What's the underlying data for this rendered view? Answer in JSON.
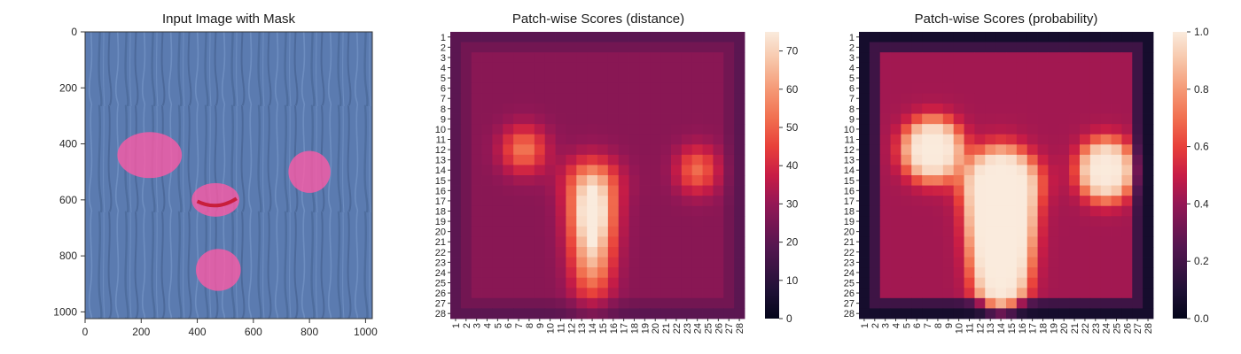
{
  "colors": {
    "texture_base": "#5b7bb0",
    "texture_dark": "#3f5a88",
    "texture_light": "#7f9fd0",
    "mask_pink": "#ff5aa5",
    "defect_red": "#c81e3c"
  },
  "chart_data": [
    {
      "type": "image",
      "title": "Input Image with Mask",
      "xlabel": "",
      "ylabel": "",
      "xlim": [
        0,
        1024
      ],
      "ylim": [
        1024,
        0
      ],
      "x_ticks": [
        "0",
        "200",
        "400",
        "600",
        "800",
        "1000"
      ],
      "y_ticks": [
        "0",
        "200",
        "400",
        "600",
        "800",
        "1000"
      ],
      "mask_regions": [
        {
          "cx": 230,
          "cy": 440,
          "rx": 115,
          "ry": 82
        },
        {
          "cx": 465,
          "cy": 600,
          "rx": 85,
          "ry": 60
        },
        {
          "cx": 800,
          "cy": 500,
          "rx": 75,
          "ry": 75
        },
        {
          "cx": 475,
          "cy": 850,
          "rx": 80,
          "ry": 75
        }
      ]
    },
    {
      "type": "heatmap",
      "title": "Patch-wise Scores (distance)",
      "xlabel": "",
      "ylabel": "",
      "rows": 28,
      "cols": 28,
      "x_ticks": [
        "1",
        "2",
        "3",
        "4",
        "5",
        "6",
        "7",
        "8",
        "9",
        "10",
        "11",
        "12",
        "13",
        "14",
        "15",
        "16",
        "17",
        "18",
        "19",
        "20",
        "21",
        "22",
        "23",
        "24",
        "25",
        "26",
        "27",
        "28"
      ],
      "y_ticks": [
        "1",
        "2",
        "3",
        "4",
        "5",
        "6",
        "7",
        "8",
        "9",
        "10",
        "11",
        "12",
        "13",
        "14",
        "15",
        "16",
        "17",
        "18",
        "19",
        "20",
        "21",
        "22",
        "23",
        "24",
        "25",
        "26",
        "27",
        "28"
      ],
      "colorbar": {
        "range": [
          0,
          75
        ],
        "ticks": [
          "0",
          "10",
          "20",
          "30",
          "40",
          "50",
          "60",
          "70"
        ],
        "tick_values": [
          0,
          10,
          20,
          30,
          40,
          50,
          60,
          70
        ]
      },
      "colormap": "rocket",
      "baseline": 28,
      "hotspots": [
        {
          "row": 18,
          "col": 14,
          "peak": 75,
          "sigma_r": 2.6,
          "sigma_c": 1.5
        },
        {
          "row": 23,
          "col": 14,
          "peak": 58,
          "sigma_r": 2.8,
          "sigma_c": 1.4
        },
        {
          "row": 12,
          "col": 7.5,
          "peak": 54,
          "sigma_r": 1.6,
          "sigma_c": 1.5
        },
        {
          "row": 14,
          "col": 24,
          "peak": 52,
          "sigma_r": 1.6,
          "sigma_c": 1.4
        },
        {
          "row": 15,
          "col": 14,
          "peak": 44,
          "sigma_r": 1.6,
          "sigma_c": 2.0
        }
      ]
    },
    {
      "type": "heatmap",
      "title": "Patch-wise Scores (probability)",
      "xlabel": "",
      "ylabel": "",
      "rows": 28,
      "cols": 28,
      "x_ticks": [
        "1",
        "2",
        "3",
        "4",
        "5",
        "6",
        "7",
        "8",
        "9",
        "10",
        "11",
        "12",
        "13",
        "14",
        "15",
        "16",
        "17",
        "18",
        "19",
        "20",
        "21",
        "22",
        "23",
        "24",
        "25",
        "26",
        "27",
        "28"
      ],
      "y_ticks": [
        "1",
        "2",
        "3",
        "4",
        "5",
        "6",
        "7",
        "8",
        "9",
        "10",
        "11",
        "12",
        "13",
        "14",
        "15",
        "16",
        "17",
        "18",
        "19",
        "20",
        "21",
        "22",
        "23",
        "24",
        "25",
        "26",
        "27",
        "28"
      ],
      "colorbar": {
        "range": [
          0,
          1
        ],
        "ticks": [
          "0.0",
          "0.2",
          "0.4",
          "0.6",
          "0.8",
          "1.0"
        ],
        "tick_values": [
          0,
          0.2,
          0.4,
          0.6,
          0.8,
          1.0
        ]
      },
      "colormap": "rocket",
      "transform": {
        "center": 29,
        "scale": 3.4
      }
    }
  ]
}
